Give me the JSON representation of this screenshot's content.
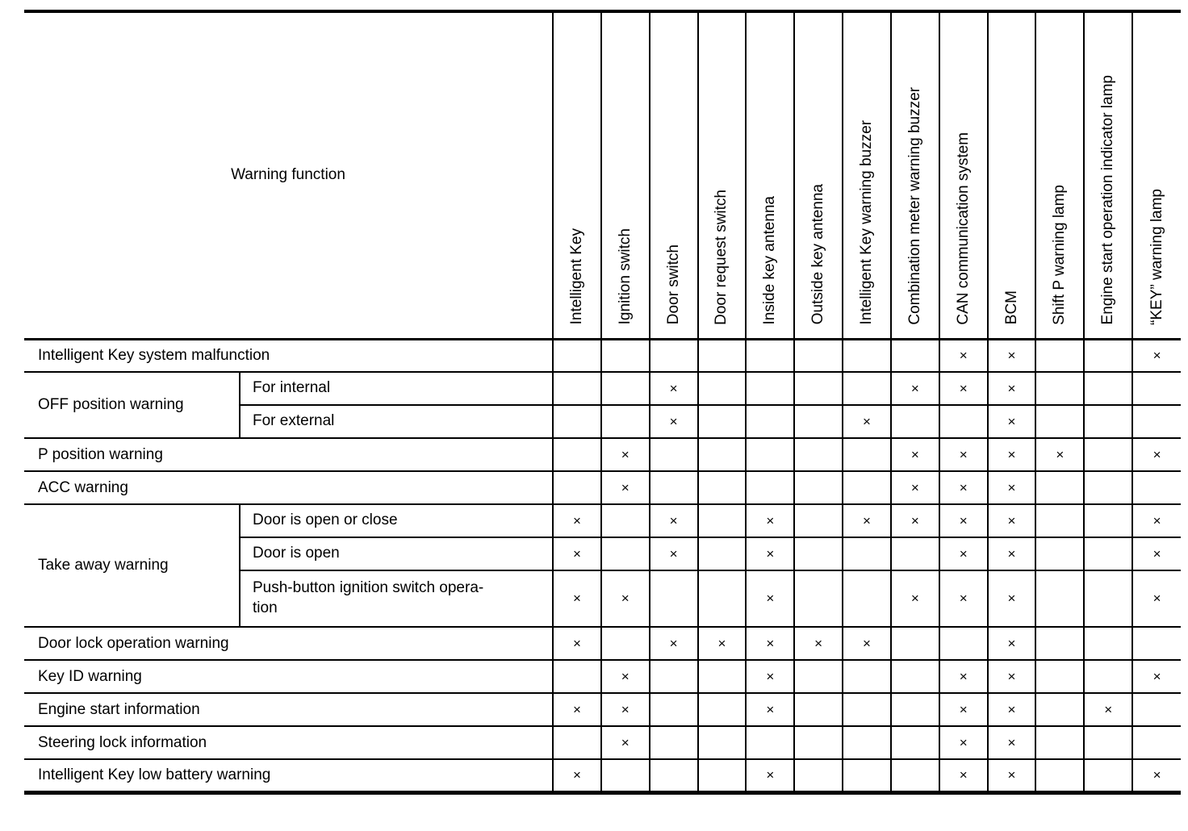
{
  "page": {
    "background": "#ffffff",
    "line_color": "#000000"
  },
  "table": {
    "corner_label": "Warning function",
    "mark_symbol": "×",
    "columns": [
      "Intelligent Key",
      "Ignition switch",
      "Door switch",
      "Door request switch",
      "Inside key antenna",
      "Outside key antenna",
      "Intelligent Key warning buzzer",
      "Combination meter warning buzzer",
      "CAN communication system",
      "BCM",
      "Shift P warning lamp",
      "Engine start operation indicator lamp",
      "“KEY” warning lamp"
    ],
    "rows": [
      {
        "label": "Intelligent Key system malfunction",
        "marks": [
          0,
          0,
          0,
          0,
          0,
          0,
          0,
          0,
          1,
          1,
          0,
          0,
          1
        ]
      },
      {
        "label": "OFF position warning",
        "subs": [
          {
            "label": "For internal",
            "marks": [
              0,
              0,
              1,
              0,
              0,
              0,
              0,
              1,
              1,
              1,
              0,
              0,
              0
            ]
          },
          {
            "label": "For external",
            "marks": [
              0,
              0,
              1,
              0,
              0,
              0,
              1,
              0,
              0,
              1,
              0,
              0,
              0
            ]
          }
        ]
      },
      {
        "label": "P position warning",
        "marks": [
          0,
          1,
          0,
          0,
          0,
          0,
          0,
          1,
          1,
          1,
          1,
          0,
          1
        ]
      },
      {
        "label": "ACC warning",
        "marks": [
          0,
          1,
          0,
          0,
          0,
          0,
          0,
          1,
          1,
          1,
          0,
          0,
          0
        ]
      },
      {
        "label": "Take away warning",
        "subs": [
          {
            "label": "Door is open or close",
            "marks": [
              1,
              0,
              1,
              0,
              1,
              0,
              1,
              1,
              1,
              1,
              0,
              0,
              1
            ]
          },
          {
            "label": "Door is open",
            "marks": [
              1,
              0,
              1,
              0,
              1,
              0,
              0,
              0,
              1,
              1,
              0,
              0,
              1
            ]
          },
          {
            "label": "Push-button ignition switch opera-\ntion",
            "marks": [
              1,
              1,
              0,
              0,
              1,
              0,
              0,
              1,
              1,
              1,
              0,
              0,
              1
            ]
          }
        ]
      },
      {
        "label": "Door lock operation warning",
        "marks": [
          1,
          0,
          1,
          1,
          1,
          1,
          1,
          0,
          0,
          1,
          0,
          0,
          0
        ]
      },
      {
        "label": "Key ID warning",
        "marks": [
          0,
          1,
          0,
          0,
          1,
          0,
          0,
          0,
          1,
          1,
          0,
          0,
          1
        ]
      },
      {
        "label": "Engine start information",
        "marks": [
          1,
          1,
          0,
          0,
          1,
          0,
          0,
          0,
          1,
          1,
          0,
          1,
          0
        ]
      },
      {
        "label": "Steering lock information",
        "marks": [
          0,
          1,
          0,
          0,
          0,
          0,
          0,
          0,
          1,
          1,
          0,
          0,
          0
        ]
      },
      {
        "label": "Intelligent Key low battery warning",
        "marks": [
          1,
          0,
          0,
          0,
          1,
          0,
          0,
          0,
          1,
          1,
          0,
          0,
          1
        ]
      }
    ]
  }
}
